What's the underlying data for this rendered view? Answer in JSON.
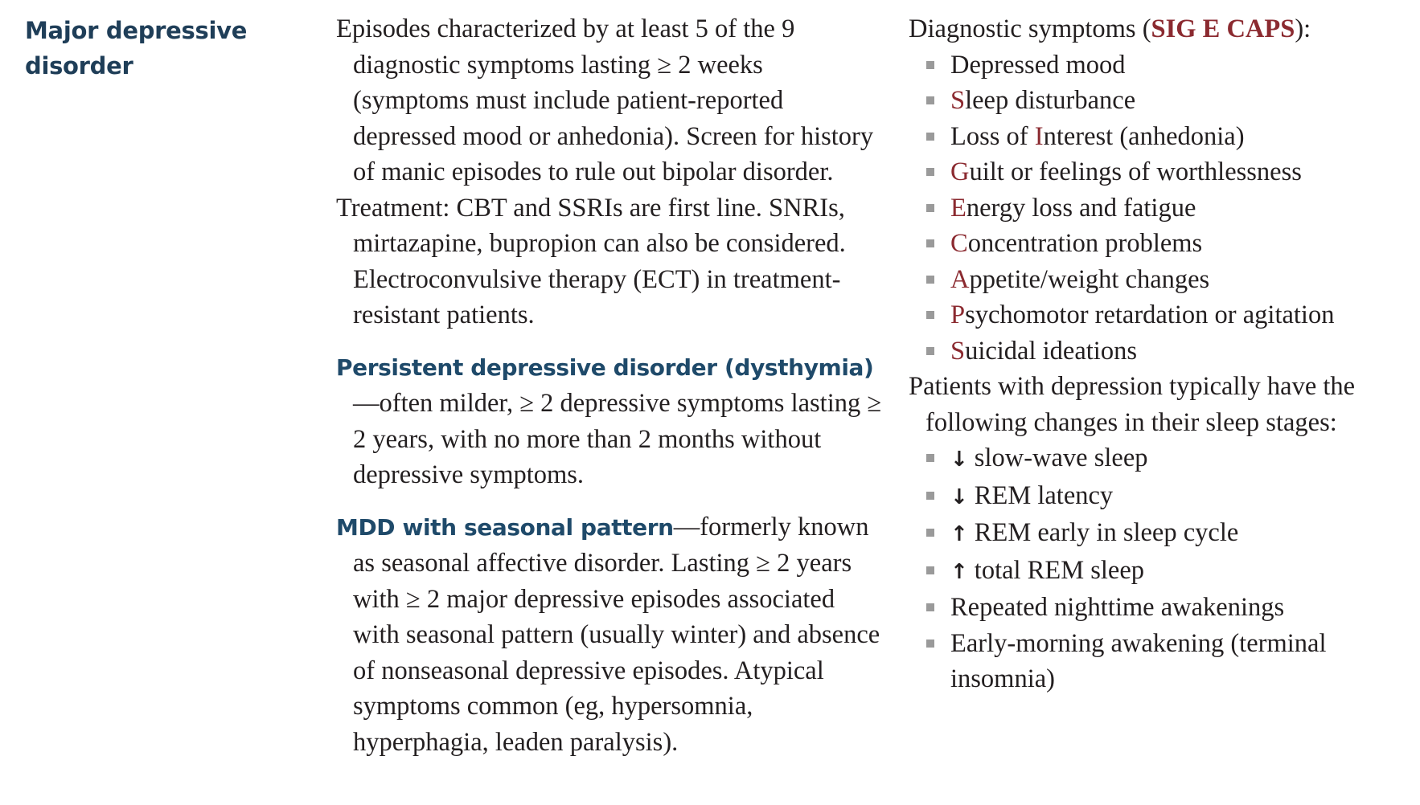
{
  "term": {
    "line1": "Major depressive",
    "line2": "disorder"
  },
  "middle": {
    "episodes": "Episodes characterized by at least 5 of the 9 diagnostic symptoms lasting ≥ 2 weeks (symptoms must include patient-reported depressed mood or anhedonia). Screen for history of manic episodes to rule out bipolar disorder.",
    "treatment": "Treatment: CBT and SSRIs are first line. SNRIs, mirtazapine, bupropion can also be considered. Electroconvulsive therapy (ECT) in treatment-resistant patients.",
    "pdd_heading": "Persistent depressive disorder (dysthymia)",
    "pdd_text": "—often milder, ≥ 2 depressive symptoms lasting ≥ 2 years, with no more than 2 months without depressive symptoms.",
    "seasonal_heading": "MDD with seasonal pattern",
    "seasonal_text": "—formerly known as seasonal affective disorder. Lasting ≥ 2 years with ≥ 2 major depressive episodes associated with seasonal pattern (usually winter) and absence of nonseasonal depressive episodes. Atypical symptoms common (eg, hypersomnia, hyperphagia, leaden paralysis)."
  },
  "right": {
    "diag_prefix": "Diagnostic symptoms (",
    "mnemonic": "SIG E CAPS",
    "diag_suffix": "):",
    "symptoms": [
      {
        "letter": "",
        "pre": "Depressed mood",
        "rest": ""
      },
      {
        "letter": "S",
        "pre": "",
        "rest": "leep disturbance"
      },
      {
        "letter": "I",
        "pre": "Loss of ",
        "rest": "nterest (anhedonia)"
      },
      {
        "letter": "G",
        "pre": "",
        "rest": "uilt or feelings of worthlessness"
      },
      {
        "letter": "E",
        "pre": "",
        "rest": "nergy loss and fatigue"
      },
      {
        "letter": "C",
        "pre": "",
        "rest": "oncentration problems"
      },
      {
        "letter": "A",
        "pre": "",
        "rest": "ppetite/weight changes"
      },
      {
        "letter": "P",
        "pre": "",
        "rest": "sychomotor retardation or agitation"
      },
      {
        "letter": "S",
        "pre": "",
        "rest": "uicidal ideations"
      }
    ],
    "sleep_intro": "Patients with depression typically have the following changes in their sleep stages:",
    "sleep_changes": [
      {
        "arrow": "↓",
        "text": "slow-wave sleep"
      },
      {
        "arrow": "↓",
        "text": "REM latency"
      },
      {
        "arrow": "↑",
        "text": "REM early in sleep cycle"
      },
      {
        "arrow": "↑",
        "text": "total REM sleep"
      },
      {
        "arrow": "",
        "text": "Repeated nighttime awakenings"
      },
      {
        "arrow": "",
        "text": "Early-morning awakening (terminal insomnia)"
      }
    ],
    "bullet_color": "#9a9a9a",
    "accent_color": "#8b2a30",
    "heading_color": "#1f3e58"
  }
}
